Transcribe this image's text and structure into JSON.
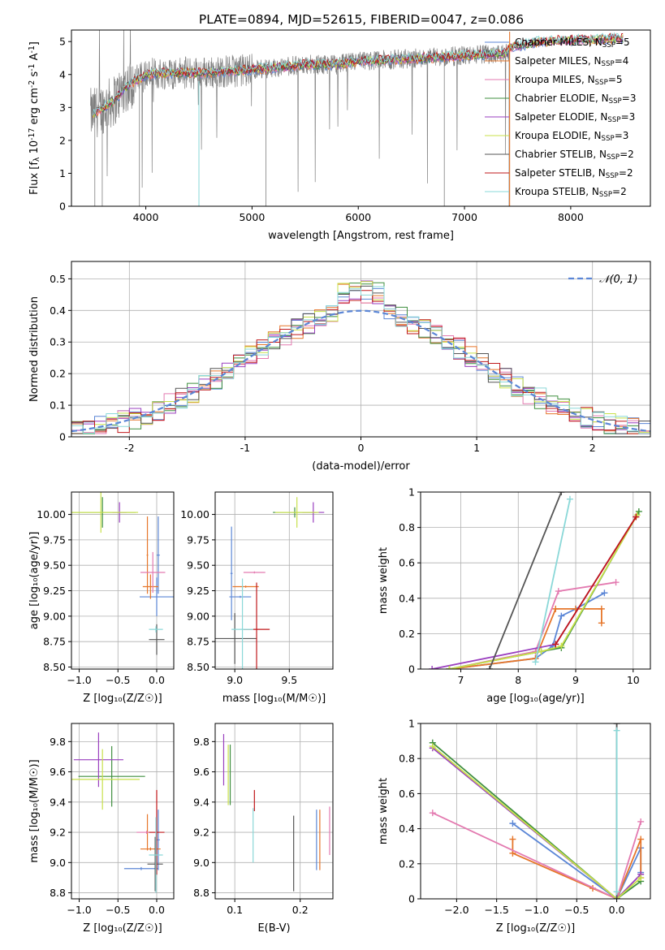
{
  "figure": {
    "suptitle": "PLATE=0894, MJD=52615, FIBERID=0047, z=0.086"
  },
  "model_colors": {
    "chabrier_miles": "#5b86d6",
    "salpeter_miles": "#e6762a",
    "kroupa_miles": "#e37ab0",
    "chabrier_elodie": "#3f8f3f",
    "salpeter_elodie": "#9a3fbf",
    "kroupa_elodie": "#c8e04a",
    "chabrier_stelib": "#555555",
    "salpeter_stelib": "#c0181b",
    "kroupa_stelib": "#8ad8d8"
  },
  "chart_data": [
    {
      "id": "spectrum",
      "type": "line",
      "xlabel": "wavelength [Angstrom, rest frame]",
      "ylabel": "Flux [f_λ 10^-17 erg cm^-2 s^-1 A^-1]",
      "xlim": [
        3300,
        8750
      ],
      "ylim": [
        0,
        5.35
      ],
      "xticks": [
        4000,
        5000,
        6000,
        7000,
        8000
      ],
      "yticks": [
        0,
        1,
        2,
        3,
        4,
        5
      ],
      "legend_position": "right",
      "legend": [
        "Chabrier MILES, N_SSP=5",
        "Salpeter MILES, N_SSP=4",
        "Kroupa MILES, N_SSP=5",
        "Chabrier ELODIE, N_SSP=3",
        "Salpeter ELODIE, N_SSP=3",
        "Kroupa ELODIE, N_SSP=3",
        "Chabrier STELIB, N_SSP=2",
        "Salpeter STELIB, N_SSP=2",
        "Kroupa STELIB, N_SSP=2"
      ],
      "continuum": {
        "x": [
          3500,
          3600,
          3700,
          3800,
          3900,
          4000,
          4200,
          4500,
          4800,
          5000,
          5200,
          5500,
          5800,
          6000,
          6300,
          6600,
          6900,
          7100,
          7400
        ],
        "y": [
          2.8,
          3.0,
          3.2,
          3.6,
          3.8,
          4.0,
          4.05,
          4.05,
          4.1,
          4.15,
          4.2,
          4.3,
          4.3,
          4.4,
          4.45,
          4.5,
          4.55,
          4.6,
          4.65
        ]
      },
      "red_tail": {
        "x": [
          7400,
          7700,
          8000,
          8200,
          8400,
          8500
        ],
        "y": [
          4.8,
          5.0,
          5.05,
          5.05,
          5.1,
          5.1
        ]
      },
      "data_xrange": [
        3480,
        7430
      ],
      "model_xrange": [
        3500,
        8500
      ],
      "data_yrange": [
        2.0,
        5.2
      ]
    },
    {
      "id": "residuals",
      "type": "step",
      "xlabel": "(data-model)/error",
      "ylabel": "Normed distribution",
      "xlim": [
        -2.5,
        2.5
      ],
      "ylim": [
        0,
        0.555
      ],
      "xticks": [
        -2,
        -1,
        0,
        1,
        2
      ],
      "yticks": [
        0.0,
        0.1,
        0.2,
        0.3,
        0.4,
        0.5
      ],
      "legend": [
        "𝒩(0, 1)"
      ],
      "legend_position": "top-right",
      "grid": true,
      "bin_width": 0.1,
      "bin_start": -2.5
    },
    {
      "id": "age_vs_Z",
      "type": "errorbar",
      "xlabel": "Z [log10(Z/Z☉)]",
      "ylabel": "age [log10(age/yr)]",
      "xlim": [
        -1.1,
        0.22
      ],
      "ylim": [
        8.48,
        10.22
      ],
      "xticks": [
        -1.0,
        -0.5,
        0.0
      ],
      "xtick_labels": [
        "−1.0",
        "−0.5",
        "0.0"
      ],
      "yticks": [
        8.5,
        8.75,
        9.0,
        9.25,
        9.5,
        9.75,
        10.0
      ],
      "ytick_labels": [
        "8.50",
        "8.75",
        "9.00",
        "9.25",
        "9.50",
        "9.75",
        "10.00"
      ],
      "grid": true,
      "points": [
        {
          "model": "chabrier_miles",
          "x": 0.0,
          "xerr": 0.22,
          "y": 9.19,
          "yerr": 0.19
        },
        {
          "model": "chabrier_miles",
          "x": 0.02,
          "xerr": 0.02,
          "y": 9.6,
          "yerr": 0.38
        },
        {
          "model": "salpeter_miles",
          "x": -0.08,
          "xerr": 0.1,
          "y": 9.29,
          "yerr": 0.12
        },
        {
          "model": "salpeter_miles",
          "x": -0.12,
          "xerr": 0.01,
          "y": 9.6,
          "yerr": 0.38
        },
        {
          "model": "kroupa_miles",
          "x": -0.05,
          "xerr": 0.16,
          "y": 9.43,
          "yerr": 0.2
        },
        {
          "model": "chabrier_elodie",
          "x": -0.7,
          "xerr": 0.43,
          "y": 10.02,
          "yerr": 0.15
        },
        {
          "model": "salpeter_elodie",
          "x": -0.48,
          "xerr": 0.09,
          "y": 10.02,
          "yerr": 0.1
        },
        {
          "model": "kroupa_elodie",
          "x": -0.72,
          "xerr": 0.48,
          "y": 10.02,
          "yerr": 0.2
        },
        {
          "model": "chabrier_stelib",
          "x": 0.0,
          "xerr": 0.1,
          "y": 8.77,
          "yerr": 0.15
        },
        {
          "model": "kroupa_stelib",
          "x": -0.01,
          "xerr": 0.09,
          "y": 8.87,
          "yerr": 0.03
        }
      ]
    },
    {
      "id": "age_vs_mass",
      "type": "errorbar",
      "xlabel": "mass [log10(M/M☉)]",
      "xlim": [
        8.82,
        9.9
      ],
      "ylim": [
        8.48,
        10.22
      ],
      "xticks": [
        9.0,
        9.5
      ],
      "xtick_labels": [
        "9.0",
        "9.5"
      ],
      "yticks": [
        8.5,
        8.75,
        9.0,
        9.25,
        9.5,
        9.75,
        10.0
      ],
      "ytick_labels": [
        "8.50",
        "8.75",
        "9.00",
        "9.25",
        "9.50",
        "9.75",
        "10.00"
      ],
      "grid": true,
      "points": [
        {
          "model": "chabrier_miles",
          "x": 9.05,
          "xerr": 0.1,
          "y": 9.19,
          "yerr": 0.01
        },
        {
          "model": "chabrier_miles",
          "x": 8.97,
          "xerr": 0.01,
          "y": 9.42,
          "yerr": 0.46
        },
        {
          "model": "salpeter_miles",
          "x": 9.1,
          "xerr": 0.12,
          "y": 9.29,
          "yerr": 0.01
        },
        {
          "model": "kroupa_miles",
          "x": 9.18,
          "xerr": 0.1,
          "y": 9.43,
          "yerr": 0.01
        },
        {
          "model": "chabrier_elodie",
          "x": 9.55,
          "xerr": 0.2,
          "y": 10.02,
          "yerr": 0.05
        },
        {
          "model": "salpeter_elodie",
          "x": 9.72,
          "xerr": 0.1,
          "y": 10.02,
          "yerr": 0.1
        },
        {
          "model": "kroupa_elodie",
          "x": 9.57,
          "xerr": 0.2,
          "y": 10.02,
          "yerr": 0.15
        },
        {
          "model": "chabrier_stelib",
          "x": 9.0,
          "xerr": 0.2,
          "y": 8.78,
          "yerr": 0.25
        },
        {
          "model": "salpeter_stelib",
          "x": 9.2,
          "xerr": 0.12,
          "y": 8.87,
          "yerr": 0.46
        },
        {
          "model": "kroupa_stelib",
          "x": 9.07,
          "xerr": 0.1,
          "y": 8.87,
          "yerr": 0.5
        }
      ]
    },
    {
      "id": "massweight_vs_age",
      "type": "line",
      "xlabel": "age [log10(age/yr)]",
      "ylabel": "mass weight",
      "xlim": [
        6.3,
        10.3
      ],
      "ylim": [
        0,
        1.0
      ],
      "xticks": [
        7,
        8,
        9,
        10
      ],
      "yticks": [
        0.0,
        0.2,
        0.4,
        0.6,
        0.8,
        1.0
      ],
      "grid": true,
      "series": [
        {
          "model": "chabrier_miles",
          "x": [
            6.8,
            8.3,
            8.6,
            8.75,
            9.0,
            9.5
          ],
          "y": [
            0.0,
            0.06,
            0.13,
            0.3,
            0.34,
            0.43
          ]
        },
        {
          "model": "salpeter_miles",
          "x": [
            6.8,
            8.3,
            8.65,
            9.0,
            9.45,
            9.45
          ],
          "y": [
            0.0,
            0.06,
            0.34,
            0.34,
            0.34,
            0.26
          ]
        },
        {
          "model": "kroupa_miles",
          "x": [
            6.8,
            8.3,
            8.7,
            9.7
          ],
          "y": [
            0.0,
            0.1,
            0.44,
            0.49
          ]
        },
        {
          "model": "chabrier_elodie",
          "x": [
            6.8,
            8.4,
            8.75,
            10.1
          ],
          "y": [
            0.0,
            0.1,
            0.12,
            0.89
          ]
        },
        {
          "model": "salpeter_elodie",
          "x": [
            6.5,
            8.65,
            10.05
          ],
          "y": [
            0.0,
            0.14,
            0.86
          ]
        },
        {
          "model": "kroupa_elodie",
          "x": [
            6.8,
            8.4,
            8.75,
            10.07
          ],
          "y": [
            0.0,
            0.1,
            0.13,
            0.87
          ]
        },
        {
          "model": "chabrier_stelib",
          "x": [
            7.5,
            8.75
          ],
          "y": [
            0.0,
            1.0
          ]
        },
        {
          "model": "salpeter_stelib",
          "x": [
            8.65,
            10.05
          ],
          "y": [
            0.14,
            0.86
          ]
        },
        {
          "model": "kroupa_stelib",
          "x": [
            8.3,
            8.9
          ],
          "y": [
            0.04,
            0.96
          ]
        }
      ]
    },
    {
      "id": "mass_vs_Z",
      "type": "errorbar",
      "xlabel": "Z [log10(Z/Z☉)]",
      "ylabel": "mass [log10(M/M☉)]",
      "xlim": [
        -1.1,
        0.22
      ],
      "ylim": [
        8.76,
        9.92
      ],
      "xticks": [
        -1.0,
        -0.5,
        0.0
      ],
      "xtick_labels": [
        "−1.0",
        "−0.5",
        "0.0"
      ],
      "yticks": [
        8.8,
        9.0,
        9.2,
        9.4,
        9.6,
        9.8
      ],
      "ytick_labels": [
        "8.8",
        "9.0",
        "9.2",
        "9.4",
        "9.6",
        "9.8"
      ],
      "grid": true,
      "points": [
        {
          "model": "chabrier_miles",
          "x": -0.2,
          "xerr": 0.22,
          "y": 8.96,
          "yerr": 0.01
        },
        {
          "model": "chabrier_miles",
          "x": 0.02,
          "xerr": 0.02,
          "y": 9.15,
          "yerr": 0.2
        },
        {
          "model": "salpeter_miles",
          "x": -0.08,
          "xerr": 0.13,
          "y": 9.09,
          "yerr": 0.01
        },
        {
          "model": "salpeter_miles",
          "x": -0.12,
          "xerr": 0.01,
          "y": 9.2,
          "yerr": 0.12
        },
        {
          "model": "kroupa_miles",
          "x": -0.13,
          "xerr": 0.13,
          "y": 9.2,
          "yerr": 0.01
        },
        {
          "model": "chabrier_elodie",
          "x": -0.58,
          "xerr": 0.43,
          "y": 9.57,
          "yerr": 0.2
        },
        {
          "model": "salpeter_elodie",
          "x": -0.75,
          "xerr": 0.32,
          "y": 9.68,
          "yerr": 0.18
        },
        {
          "model": "kroupa_elodie",
          "x": -0.7,
          "xerr": 0.48,
          "y": 9.55,
          "yerr": 0.2
        },
        {
          "model": "chabrier_stelib",
          "x": -0.02,
          "xerr": 0.1,
          "y": 8.99,
          "yerr": 0.18
        },
        {
          "model": "salpeter_stelib",
          "x": 0.0,
          "xerr": 0.1,
          "y": 9.2,
          "yerr": 0.28
        },
        {
          "model": "kroupa_stelib",
          "x": -0.01,
          "xerr": 0.09,
          "y": 9.05,
          "yerr": 0.25
        }
      ]
    },
    {
      "id": "mass_vs_ebv",
      "type": "errorbar",
      "xlabel": "E(B-V)",
      "xlim": [
        0.07,
        0.25
      ],
      "ylim": [
        8.76,
        9.92
      ],
      "xticks": [
        0.1,
        0.2
      ],
      "xtick_labels": [
        "0.1",
        "0.2"
      ],
      "yticks": [
        8.8,
        9.0,
        9.2,
        9.4,
        9.6,
        9.8
      ],
      "ytick_labels": [
        "8.8",
        "9.0",
        "9.2",
        "9.4",
        "9.6",
        "9.8"
      ],
      "grid": true,
      "points": [
        {
          "model": "chabrier_miles",
          "x": 0.225,
          "xerr": 0,
          "y": 9.15,
          "yerr": 0.2
        },
        {
          "model": "salpeter_miles",
          "x": 0.23,
          "xerr": 0,
          "y": 9.15,
          "yerr": 0.2
        },
        {
          "model": "kroupa_miles",
          "x": 0.245,
          "xerr": 0,
          "y": 9.21,
          "yerr": 0.16
        },
        {
          "model": "chabrier_elodie",
          "x": 0.093,
          "xerr": 0,
          "y": 9.58,
          "yerr": 0.2
        },
        {
          "model": "salpeter_elodie",
          "x": 0.083,
          "xerr": 0,
          "y": 9.68,
          "yerr": 0.17
        },
        {
          "model": "kroupa_elodie",
          "x": 0.09,
          "xerr": 0,
          "y": 9.58,
          "yerr": 0.2
        },
        {
          "model": "chabrier_stelib",
          "x": 0.19,
          "xerr": 0,
          "y": 9.06,
          "yerr": 0.25
        },
        {
          "model": "salpeter_stelib",
          "x": 0.13,
          "xerr": 0,
          "y": 9.41,
          "yerr": 0.07
        },
        {
          "model": "kroupa_stelib",
          "x": 0.128,
          "xerr": 0,
          "y": 9.18,
          "yerr": 0.18
        }
      ]
    },
    {
      "id": "massweight_vs_Z",
      "type": "line",
      "xlabel": "Z [log10(Z/Z☉)]",
      "ylabel": "mass weight",
      "xlim": [
        -2.45,
        0.42
      ],
      "ylim": [
        0,
        1.0
      ],
      "xticks": [
        -2.0,
        -1.5,
        -1.0,
        -0.5,
        0.0
      ],
      "xtick_labels": [
        "−2.0",
        "−1.5",
        "−1.0",
        "−0.5",
        "0.0"
      ],
      "yticks": [
        0.0,
        0.2,
        0.4,
        0.6,
        0.8,
        1.0
      ],
      "grid": true,
      "series": [
        {
          "model": "chabrier_miles",
          "x": [
            -1.3,
            0.0,
            0.3,
            0.3
          ],
          "y": [
            0.43,
            0.0,
            0.29,
            0.15
          ]
        },
        {
          "model": "salpeter_miles",
          "x": [
            -1.3,
            -1.3,
            -0.3,
            0.0,
            0.3,
            0.3
          ],
          "y": [
            0.34,
            0.26,
            0.06,
            0.0,
            0.34,
            0.12
          ]
        },
        {
          "model": "kroupa_miles",
          "x": [
            -2.3,
            0.0,
            0.3
          ],
          "y": [
            0.49,
            0.0,
            0.44
          ]
        },
        {
          "model": "chabrier_elodie",
          "x": [
            -2.3,
            0.0,
            0.3
          ],
          "y": [
            0.89,
            0.0,
            0.1
          ]
        },
        {
          "model": "salpeter_elodie",
          "x": [
            -2.3,
            0.0,
            0.3
          ],
          "y": [
            0.86,
            0.0,
            0.14
          ]
        },
        {
          "model": "kroupa_elodie",
          "x": [
            -2.3,
            0.0,
            0.3
          ],
          "y": [
            0.87,
            0.0,
            0.12
          ]
        },
        {
          "model": "chabrier_stelib",
          "x": [
            0.0,
            0.0
          ],
          "y": [
            0.0,
            1.0
          ]
        },
        {
          "model": "kroupa_stelib",
          "x": [
            0.0,
            0.0
          ],
          "y": [
            0.04,
            0.96
          ]
        }
      ]
    }
  ]
}
